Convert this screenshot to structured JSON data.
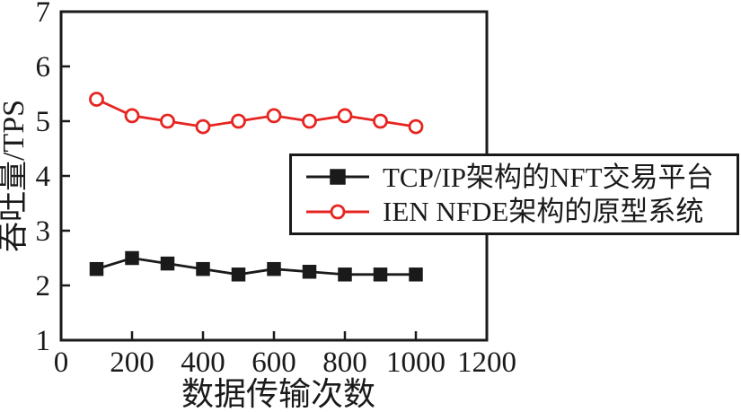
{
  "figure": {
    "background": "#ffffff",
    "ink_color": "#1a1a1a"
  },
  "chart_data": {
    "type": "line",
    "title": "",
    "xlabel": "数据传输次数",
    "ylabel": "吞吐量/TPS",
    "xlim": [
      0,
      1200
    ],
    "ylim": [
      1,
      7
    ],
    "xticks": [
      0,
      200,
      400,
      600,
      800,
      1000,
      1200
    ],
    "yticks": [
      1,
      2,
      3,
      4,
      5,
      6,
      7
    ],
    "grid": false,
    "legend_position": "inside-middle-right",
    "x": [
      100,
      200,
      300,
      400,
      500,
      600,
      700,
      800,
      900,
      1000
    ],
    "series": [
      {
        "name": "TCP/IP架构的NFT交易平台",
        "color": "#1a1a1a",
        "marker": "square",
        "marker_fill": "#1a1a1a",
        "values": [
          2.3,
          2.5,
          2.4,
          2.3,
          2.2,
          2.3,
          2.25,
          2.2,
          2.2,
          2.2
        ]
      },
      {
        "name": "IEN NFDE架构的原型系统",
        "color": "#e62420",
        "marker": "circle",
        "marker_fill": "#ffffff",
        "values": [
          5.4,
          5.1,
          5.0,
          4.9,
          5.0,
          5.1,
          5.0,
          5.1,
          5.0,
          4.9
        ]
      }
    ]
  }
}
